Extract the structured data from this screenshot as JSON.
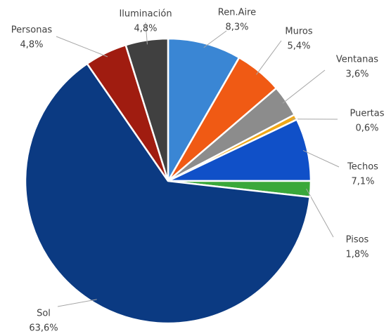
{
  "chart_data": {
    "type": "pie",
    "categories": [
      "Ren.Aire",
      "Muros",
      "Ventanas",
      "Puertas",
      "Techos",
      "Pisos",
      "Sol",
      "Personas",
      "Iluminación"
    ],
    "values": [
      8.3,
      5.4,
      3.6,
      0.6,
      7.1,
      1.8,
      63.6,
      4.8,
      4.8
    ],
    "value_labels": [
      "8,3%",
      "5,4%",
      "3,6%",
      "0,6%",
      "7,1%",
      "1,8%",
      "63,6%",
      "4,8%",
      "4,8%"
    ],
    "colors": [
      "#3a86d4",
      "#f05a14",
      "#8c8c8c",
      "#f0a818",
      "#1050c8",
      "#3aa83a",
      "#0b3a82",
      "#a01c10",
      "#404040"
    ]
  }
}
